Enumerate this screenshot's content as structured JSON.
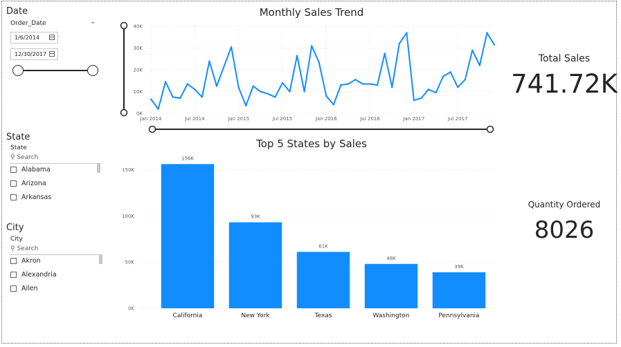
{
  "date_slicer": {
    "title": "Date",
    "field": "Order_Date",
    "start": "1/6/2014",
    "end": "12/30/2017"
  },
  "state_slicer": {
    "title": "State",
    "field": "State",
    "search_placeholder": "Search",
    "items": [
      "Alabama",
      "Arizona",
      "Arkansas"
    ]
  },
  "city_slicer": {
    "title": "City",
    "field": "City",
    "search_placeholder": "Search",
    "items": [
      "Akron",
      "Alexandria",
      "Allen"
    ]
  },
  "cards": {
    "total_sales": {
      "label": "Total Sales",
      "value": "741.72K"
    },
    "quantity": {
      "label": "Quantity Ordered",
      "value": "8026"
    }
  },
  "accent_color": "#118DFF",
  "chart_data": [
    {
      "type": "line",
      "title": "Monthly Sales Trend",
      "ylim": [
        0,
        40000
      ],
      "y_ticks": [
        "0K",
        "10K",
        "20K",
        "30K",
        "40K"
      ],
      "x_ticks": [
        "Jan 2014",
        "Jul 2014",
        "Jan 2015",
        "Jul 2015",
        "Jan 2016",
        "Jul 2016",
        "Jan 2017",
        "Jul 2017"
      ],
      "grid": true,
      "x": [
        "2014-01",
        "2014-02",
        "2014-03",
        "2014-04",
        "2014-05",
        "2014-06",
        "2014-07",
        "2014-08",
        "2014-09",
        "2014-10",
        "2014-11",
        "2014-12",
        "2015-01",
        "2015-02",
        "2015-03",
        "2015-04",
        "2015-05",
        "2015-06",
        "2015-07",
        "2015-08",
        "2015-09",
        "2015-10",
        "2015-11",
        "2015-12",
        "2016-01",
        "2016-02",
        "2016-03",
        "2016-04",
        "2016-05",
        "2016-06",
        "2016-07",
        "2016-08",
        "2016-09",
        "2016-10",
        "2016-11",
        "2016-12",
        "2017-01",
        "2017-02",
        "2017-03",
        "2017-04",
        "2017-05",
        "2017-06",
        "2017-07",
        "2017-08",
        "2017-09",
        "2017-10",
        "2017-11",
        "2017-12"
      ],
      "values": [
        6500,
        2000,
        14500,
        7500,
        7000,
        13500,
        11000,
        7500,
        24000,
        12500,
        21500,
        30500,
        12000,
        3500,
        12500,
        10000,
        9000,
        7500,
        14000,
        10000,
        26500,
        10000,
        31000,
        23500,
        8000,
        4000,
        13000,
        13500,
        15500,
        13500,
        13500,
        13000,
        27500,
        12000,
        32000,
        37000,
        6000,
        7000,
        11000,
        9500,
        17000,
        19000,
        12000,
        15500,
        29000,
        22000,
        37000,
        31500
      ]
    },
    {
      "type": "bar",
      "title": "Top 5 States by Sales",
      "categories": [
        "California",
        "New York",
        "Texas",
        "Washington",
        "Pennsylvania"
      ],
      "values": [
        156000,
        93000,
        61000,
        48000,
        39000
      ],
      "data_labels": [
        "156K",
        "93K",
        "61K",
        "48K",
        "39K"
      ],
      "ylim": [
        0,
        160000
      ],
      "y_ticks": [
        "0K",
        "50K",
        "100K",
        "150K"
      ],
      "grid": true
    }
  ]
}
